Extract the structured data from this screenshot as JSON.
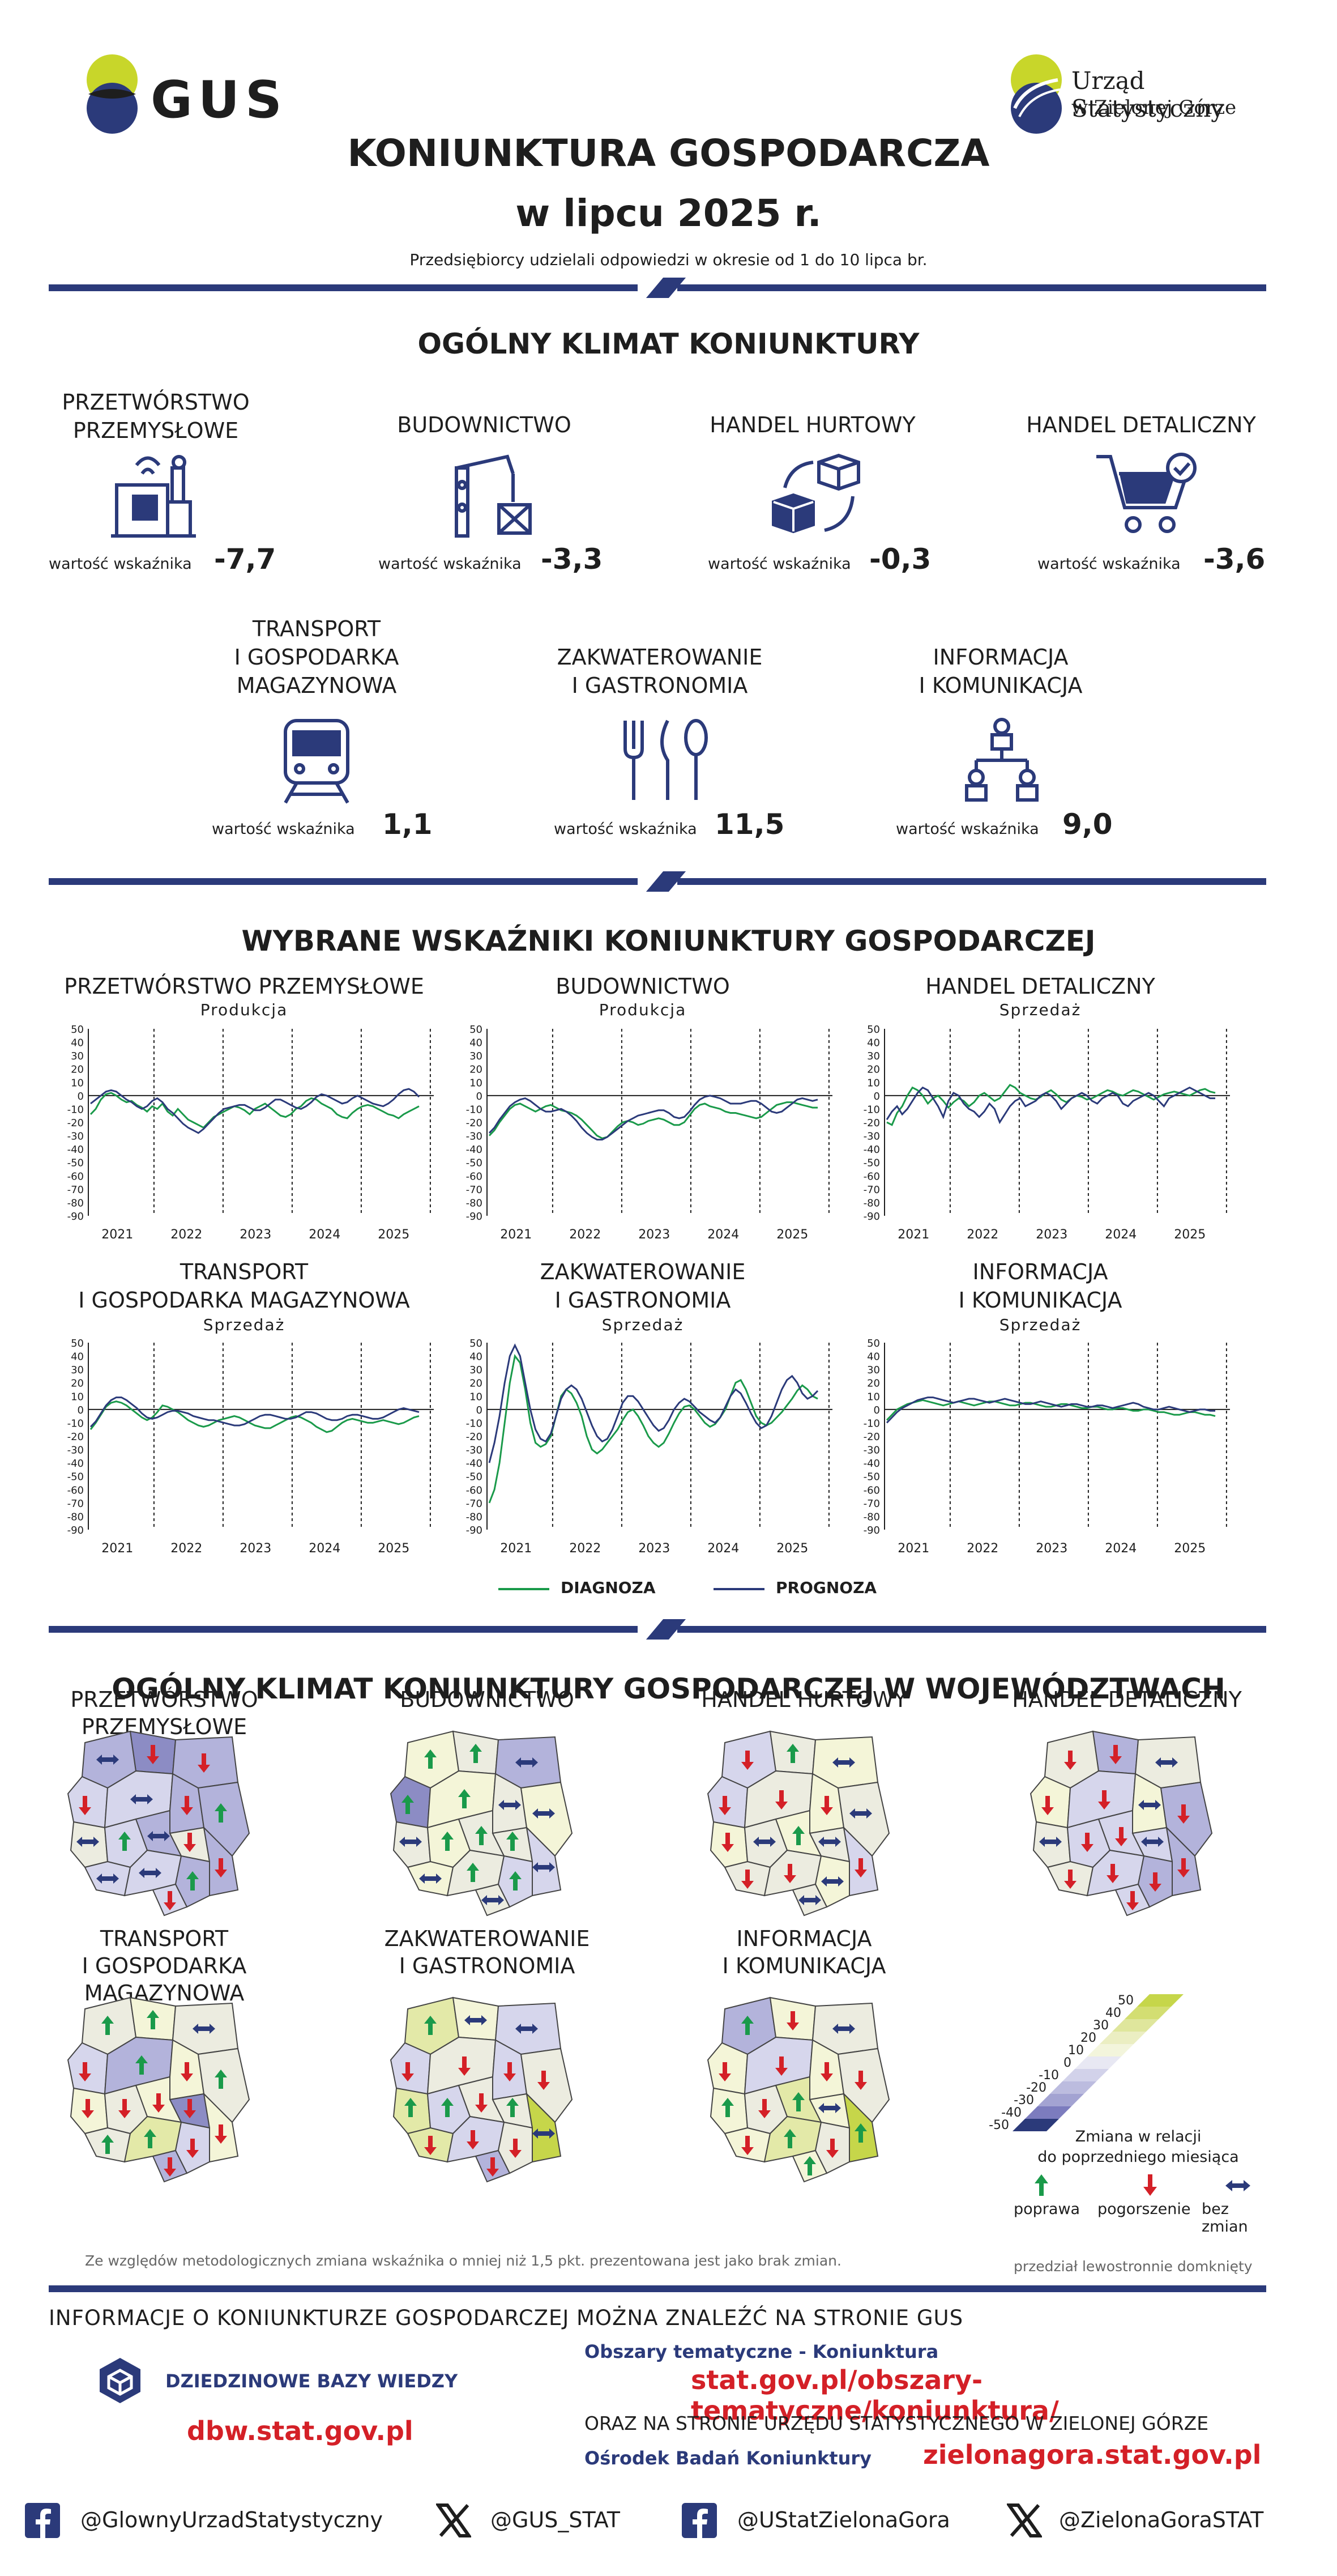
{
  "header": {
    "logo_left_text": "GUS",
    "logo_right_line1": "Urząd Statystyczny",
    "logo_right_line2": "w Zielonej Górze",
    "title_line1": "KONIUNKTURA GOSPODARCZA",
    "title_line2": "w lipcu 2025 r.",
    "subtitle": "Przedsiębiorcy udzielali odpowiedzi w okresie od 1 do 10 lipca br."
  },
  "climate": {
    "section_title": "OGÓLNY KLIMAT KONIUNKTURY",
    "indicator_label": "wartość wskaźnika",
    "sectors": [
      {
        "name1": "PRZETWÓRSTWO",
        "name2": "PRZEMYSŁOWE",
        "name3": "",
        "value": "-7,7",
        "icon": "factory-icon"
      },
      {
        "name1": "BUDOWNICTWO",
        "name2": "",
        "name3": "",
        "value": "-3,3",
        "icon": "crane-icon"
      },
      {
        "name1": "HANDEL HURTOWY",
        "name2": "",
        "name3": "",
        "value": "-0,3",
        "icon": "boxes-icon"
      },
      {
        "name1": "HANDEL DETALICZNY",
        "name2": "",
        "name3": "",
        "value": "-3,6",
        "icon": "cart-icon"
      },
      {
        "name1": "TRANSPORT",
        "name2": "I GOSPODARKA",
        "name3": "MAGAZYNOWA",
        "value": "1,1",
        "icon": "train-icon"
      },
      {
        "name1": "ZAKWATEROWANIE",
        "name2": "I GASTRONOMIA",
        "name3": "",
        "value": "11,5",
        "icon": "cutlery-icon"
      },
      {
        "name1": "INFORMACJA",
        "name2": "I KOMUNIKACJA",
        "name3": "",
        "value": "9,0",
        "icon": "network-icon"
      }
    ]
  },
  "indicators": {
    "section_title": "WYBRANE WSKAŹNIKI KONIUNKTURY GOSPODARCZEJ",
    "legend_diag": "DIAGNOZA",
    "legend_prog": "PROGNOZA",
    "colors": {
      "diag": "#1a9a4a",
      "prog": "#2b3a7a"
    },
    "y_ticks": [
      "50",
      "40",
      "30",
      "20",
      "10",
      "0",
      "-10",
      "-20",
      "-30",
      "-40",
      "-50",
      "-60",
      "-70",
      "-80",
      "-90"
    ],
    "x_years": [
      "2021",
      "2022",
      "2023",
      "2024",
      "2025"
    ]
  },
  "chart_data": [
    {
      "type": "line",
      "title": "PRZETWÓRSTWO PRZEMYSŁOWE",
      "subtitle": "Produkcja",
      "ylim": [
        -90,
        50
      ],
      "series": [
        {
          "name": "DIAGNOZA",
          "values": [
            -14,
            -10,
            -3,
            1,
            2,
            0,
            -3,
            -5,
            -4,
            -7,
            -9,
            -12,
            -8,
            -10,
            -6,
            -12,
            -15,
            -10,
            -14,
            -18,
            -20,
            -22,
            -24,
            -20,
            -16,
            -14,
            -12,
            -10,
            -8,
            -9,
            -11,
            -14,
            -10,
            -8,
            -6,
            -9,
            -12,
            -15,
            -16,
            -14,
            -10,
            -8,
            -4,
            -2,
            -3,
            -6,
            -8,
            -10,
            -14,
            -16,
            -17,
            -13,
            -10,
            -8,
            -7,
            -8,
            -10,
            -12,
            -14,
            -15,
            -17,
            -14,
            -12,
            -10,
            -8
          ]
        },
        {
          "name": "PROGNOZA",
          "values": [
            -6,
            -3,
            0,
            3,
            4,
            3,
            0,
            -3,
            -5,
            -8,
            -10,
            -8,
            -4,
            -2,
            -5,
            -10,
            -13,
            -17,
            -21,
            -24,
            -26,
            -28,
            -25,
            -21,
            -17,
            -13,
            -10,
            -9,
            -8,
            -7,
            -7,
            -9,
            -11,
            -11,
            -9,
            -6,
            -3,
            -3,
            -5,
            -7,
            -9,
            -10,
            -8,
            -5,
            -1,
            1,
            0,
            -2,
            -4,
            -6,
            -5,
            -2,
            0,
            -2,
            -4,
            -6,
            -7,
            -8,
            -6,
            -3,
            1,
            4,
            5,
            3,
            -1
          ]
        }
      ]
    },
    {
      "type": "line",
      "title": "BUDOWNICTWO",
      "subtitle": "Produkcja",
      "ylim": [
        -90,
        50
      ],
      "series": [
        {
          "name": "DIAGNOZA",
          "values": [
            -30,
            -26,
            -20,
            -15,
            -10,
            -7,
            -6,
            -8,
            -10,
            -12,
            -10,
            -8,
            -7,
            -9,
            -11,
            -12,
            -13,
            -15,
            -18,
            -22,
            -26,
            -30,
            -32,
            -31,
            -27,
            -23,
            -20,
            -19,
            -20,
            -22,
            -21,
            -19,
            -18,
            -17,
            -18,
            -20,
            -22,
            -22,
            -20,
            -15,
            -10,
            -7,
            -6,
            -8,
            -9,
            -10,
            -12,
            -13,
            -13,
            -14,
            -15,
            -16,
            -17,
            -16,
            -13,
            -10,
            -7,
            -6,
            -5,
            -5,
            -6,
            -7,
            -8,
            -9,
            -9
          ]
        },
        {
          "name": "PROGNOZA",
          "values": [
            -28,
            -24,
            -18,
            -13,
            -8,
            -5,
            -3,
            -2,
            -4,
            -7,
            -10,
            -12,
            -12,
            -11,
            -10,
            -12,
            -15,
            -19,
            -24,
            -28,
            -31,
            -33,
            -33,
            -31,
            -28,
            -25,
            -22,
            -19,
            -17,
            -15,
            -14,
            -13,
            -12,
            -11,
            -11,
            -13,
            -16,
            -17,
            -16,
            -12,
            -7,
            -3,
            -1,
            0,
            -1,
            -2,
            -4,
            -6,
            -6,
            -6,
            -5,
            -4,
            -4,
            -6,
            -9,
            -12,
            -13,
            -12,
            -9,
            -6,
            -3,
            -2,
            -3,
            -4,
            -3
          ]
        }
      ]
    },
    {
      "type": "line",
      "title": "HANDEL DETALICZNY",
      "subtitle": "Sprzedaż",
      "ylim": [
        -90,
        50
      ],
      "series": [
        {
          "name": "DIAGNOZA",
          "values": [
            -20,
            -22,
            -13,
            -8,
            0,
            6,
            4,
            0,
            -6,
            -2,
            0,
            -4,
            -9,
            -5,
            -2,
            -4,
            -8,
            -5,
            0,
            2,
            -1,
            -4,
            -2,
            3,
            8,
            6,
            2,
            0,
            -2,
            -3,
            -1,
            2,
            4,
            1,
            -3,
            -5,
            -2,
            0,
            -1,
            -3,
            -2,
            0,
            2,
            4,
            3,
            1,
            0,
            2,
            4,
            3,
            1,
            -1,
            -3,
            -1,
            1,
            2,
            3,
            2,
            1,
            0,
            2,
            4,
            5,
            3,
            2
          ]
        },
        {
          "name": "PROGNOZA",
          "values": [
            -18,
            -12,
            -8,
            -14,
            -10,
            -4,
            2,
            6,
            4,
            -2,
            -8,
            -16,
            -4,
            2,
            0,
            -6,
            -10,
            -12,
            -16,
            -12,
            -6,
            -10,
            -20,
            -14,
            -8,
            -4,
            -2,
            -8,
            -6,
            -4,
            0,
            2,
            0,
            -4,
            -10,
            -6,
            -2,
            0,
            2,
            0,
            -4,
            -6,
            -2,
            0,
            2,
            0,
            -6,
            -8,
            -4,
            -2,
            0,
            2,
            0,
            -4,
            -8,
            -2,
            0,
            2,
            4,
            6,
            4,
            2,
            0,
            -2,
            -2
          ]
        }
      ]
    },
    {
      "type": "line",
      "title": "TRANSPORT I GOSPODARKA MAGAZYNOWA",
      "subtitle": "Sprzedaż",
      "ylim": [
        -90,
        50
      ],
      "series": [
        {
          "name": "DIAGNOZA",
          "values": [
            -15,
            -10,
            -4,
            2,
            5,
            6,
            5,
            3,
            0,
            -3,
            -6,
            -8,
            -6,
            -2,
            3,
            2,
            0,
            -2,
            -5,
            -8,
            -10,
            -12,
            -13,
            -12,
            -10,
            -8,
            -7,
            -6,
            -5,
            -6,
            -8,
            -10,
            -12,
            -13,
            -14,
            -14,
            -12,
            -10,
            -8,
            -6,
            -5,
            -6,
            -8,
            -10,
            -13,
            -15,
            -17,
            -16,
            -13,
            -10,
            -8,
            -7,
            -8,
            -9,
            -10,
            -10,
            -9,
            -8,
            -9,
            -10,
            -11,
            -10,
            -8,
            -6,
            -5
          ]
        },
        {
          "name": "PROGNOZA",
          "values": [
            -13,
            -9,
            -3,
            3,
            7,
            9,
            9,
            7,
            4,
            1,
            -3,
            -6,
            -7,
            -6,
            -4,
            -2,
            -1,
            -1,
            -2,
            -3,
            -5,
            -6,
            -7,
            -8,
            -8,
            -9,
            -10,
            -11,
            -12,
            -12,
            -11,
            -9,
            -7,
            -5,
            -4,
            -4,
            -5,
            -6,
            -7,
            -7,
            -6,
            -4,
            -2,
            -2,
            -3,
            -5,
            -7,
            -8,
            -8,
            -7,
            -5,
            -4,
            -4,
            -5,
            -6,
            -7,
            -7,
            -6,
            -4,
            -2,
            0,
            1,
            0,
            -1,
            -2
          ]
        }
      ]
    },
    {
      "type": "line",
      "title": "ZAKWATEROWANIE I GASTRONOMIA",
      "subtitle": "Sprzedaż",
      "ylim": [
        -90,
        50
      ],
      "series": [
        {
          "name": "DIAGNOZA",
          "values": [
            -70,
            -60,
            -40,
            -10,
            20,
            40,
            35,
            15,
            -10,
            -25,
            -28,
            -26,
            -20,
            -5,
            10,
            15,
            12,
            5,
            -5,
            -20,
            -30,
            -33,
            -30,
            -25,
            -20,
            -15,
            -8,
            -2,
            0,
            -5,
            -12,
            -20,
            -25,
            -28,
            -25,
            -18,
            -10,
            -3,
            2,
            3,
            0,
            -5,
            -10,
            -13,
            -11,
            -6,
            0,
            10,
            20,
            22,
            15,
            5,
            -5,
            -10,
            -12,
            -10,
            -6,
            -2,
            3,
            8,
            14,
            18,
            15,
            10,
            8
          ]
        },
        {
          "name": "PROGNOZA",
          "values": [
            -40,
            -25,
            -5,
            20,
            40,
            48,
            40,
            20,
            0,
            -15,
            -22,
            -24,
            -18,
            -5,
            8,
            15,
            18,
            15,
            8,
            -2,
            -12,
            -20,
            -24,
            -22,
            -15,
            -5,
            5,
            10,
            10,
            6,
            0,
            -6,
            -12,
            -16,
            -14,
            -8,
            0,
            5,
            8,
            6,
            2,
            -2,
            -5,
            -8,
            -10,
            -6,
            2,
            10,
            15,
            12,
            5,
            -3,
            -10,
            -14,
            -12,
            -5,
            5,
            15,
            22,
            25,
            20,
            12,
            8,
            10,
            14
          ]
        }
      ]
    },
    {
      "type": "line",
      "title": "INFORMACJA I KOMUNIKACJA",
      "subtitle": "Sprzedaż",
      "ylim": [
        -90,
        50
      ],
      "series": [
        {
          "name": "DIAGNOZA",
          "values": [
            -8,
            -4,
            0,
            2,
            4,
            5,
            6,
            7,
            6,
            5,
            4,
            3,
            4,
            5,
            6,
            5,
            4,
            3,
            4,
            5,
            6,
            6,
            5,
            4,
            3,
            3,
            4,
            5,
            5,
            4,
            3,
            2,
            2,
            3,
            4,
            4,
            3,
            2,
            1,
            1,
            2,
            2,
            1,
            0,
            0,
            1,
            1,
            0,
            -1,
            -1,
            0,
            0,
            -1,
            -2,
            -2,
            -3,
            -4,
            -4,
            -3,
            -2,
            -2,
            -3,
            -4,
            -4,
            -5
          ]
        },
        {
          "name": "PROGNOZA",
          "values": [
            -10,
            -6,
            -2,
            1,
            3,
            5,
            7,
            8,
            9,
            9,
            8,
            7,
            6,
            5,
            6,
            7,
            8,
            8,
            7,
            6,
            5,
            6,
            7,
            8,
            7,
            6,
            5,
            4,
            4,
            5,
            6,
            5,
            4,
            3,
            2,
            3,
            4,
            4,
            3,
            2,
            2,
            3,
            3,
            2,
            1,
            2,
            3,
            4,
            5,
            4,
            2,
            1,
            0,
            0,
            1,
            2,
            1,
            0,
            -1,
            -2,
            -1,
            0,
            0,
            -1,
            -1
          ]
        }
      ]
    }
  ],
  "regions": {
    "section_title": "OGÓLNY KLIMAT KONIUNKTURY GOSPODARCZEJ W WOJEWÓDZTWACH",
    "maps": [
      {
        "title1": "PRZETWÓRSTWO PRZEMYSŁOWE",
        "title2": ""
      },
      {
        "title1": "BUDOWNICTWO",
        "title2": ""
      },
      {
        "title1": "HANDEL HURTOWY",
        "title2": ""
      },
      {
        "title1": "HANDEL DETALICZNY",
        "title2": ""
      },
      {
        "title1": "TRANSPORT",
        "title2": "I GOSPODARKA MAGAZYNOWA"
      },
      {
        "title1": "ZAKWATEROWANIE",
        "title2": "I GASTRONOMIA"
      },
      {
        "title1": "INFORMACJA",
        "title2": "I KOMUNIKACJA"
      }
    ],
    "scale_ticks": [
      "50",
      "40",
      "30",
      "20",
      "10",
      "0",
      "-10",
      "-20",
      "-30",
      "-40",
      "-50"
    ],
    "scale_caption1": "Zmiana w relacji",
    "scale_caption2": "do poprzedniego miesiąca",
    "legend_up": "poprawa",
    "legend_down": "pogorszenie",
    "legend_same": "bez zmian",
    "note": "Ze względów metodologicznych zmiana wskaźnika o mniej niż 1,5 pkt. prezentowana jest jako brak zmian.",
    "note_right": "przedział lewostronnie domknięty",
    "colors": {
      "up": "#1a9a4a",
      "down": "#d42027",
      "same": "#2b3a7a"
    }
  },
  "footer": {
    "info_line": "INFORMACJE O KONIUNKTURZE GOSPODARCZEJ MOŻNA ZNALEŹĆ NA STRONIE GUS",
    "dbw_label": "DZIEDZINOWE BAZY WIEDZY",
    "dbw_url": "dbw.stat.gov.pl",
    "themes_label": "Obszary tematyczne - Koniunktura",
    "themes_url": "stat.gov.pl/obszary-tematyczne/koniunktura/",
    "us_line": "ORAZ NA STRONIE URZĘDU STATYSTYCZNEGO W ZIELONEJ GÓRZE",
    "center_label": "Ośrodek Badań Koniunktury",
    "us_url": "zielonagora.stat.gov.pl",
    "social": [
      "@GlownyUrzadStatystyczny",
      "@GUS_STAT",
      "@UStatZielonaGora",
      "@ZielonaGoraSTAT"
    ]
  }
}
